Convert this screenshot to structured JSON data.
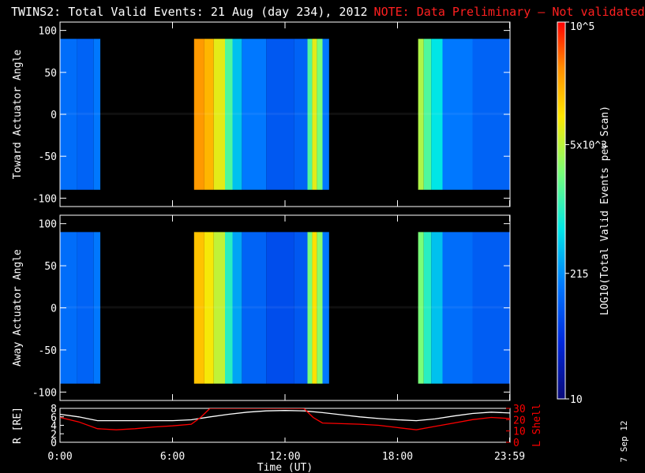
{
  "header": {
    "title": "TWINS2: Total Valid Events: 21 Aug (day 234), 2012",
    "note": "NOTE: Data Preliminary — Not validated"
  },
  "side_stamp": "7 Sep 12",
  "colors": {
    "background": "#000000",
    "frame": "#ffffff",
    "note": "#ff2020",
    "r_line": "#ffffff",
    "lshell_line": "#ff0000"
  },
  "colorbar": {
    "label": "LOG10(Total Valid Events per Scan)",
    "scale": "log",
    "range": [
      10,
      100000
    ],
    "tick_labels": [
      "10",
      "215",
      "5x10^3",
      "10^5"
    ],
    "tick_values": [
      10,
      215,
      5000,
      100000
    ]
  },
  "chart_data": [
    {
      "type": "heatmap",
      "name": "toward",
      "ylabel": "Toward Actuator Angle",
      "xlabel": "",
      "xlim": [
        0,
        24
      ],
      "ylim": [
        -110,
        110
      ],
      "y_ticks": [
        "100",
        "50",
        "0",
        "-50",
        "-100"
      ],
      "y_tick_values": [
        100,
        50,
        0,
        -50,
        -100
      ],
      "angle_range": [
        -90,
        90
      ],
      "columns": [
        {
          "start": 0.0,
          "end": 0.9,
          "level": 0.28
        },
        {
          "start": 0.9,
          "end": 1.8,
          "level": 0.26
        },
        {
          "start": 1.8,
          "end": 2.15,
          "level": 0.3
        },
        {
          "start": 7.15,
          "end": 7.7,
          "level": 0.86
        },
        {
          "start": 7.7,
          "end": 8.2,
          "level": 0.82
        },
        {
          "start": 8.2,
          "end": 8.8,
          "level": 0.72
        },
        {
          "start": 8.8,
          "end": 9.2,
          "level": 0.55
        },
        {
          "start": 9.2,
          "end": 9.7,
          "level": 0.4
        },
        {
          "start": 9.7,
          "end": 11.0,
          "level": 0.3
        },
        {
          "start": 11.0,
          "end": 12.5,
          "level": 0.24
        },
        {
          "start": 12.5,
          "end": 13.2,
          "level": 0.26
        },
        {
          "start": 13.2,
          "end": 13.45,
          "level": 0.55
        },
        {
          "start": 13.45,
          "end": 13.7,
          "level": 0.72
        },
        {
          "start": 13.7,
          "end": 14.0,
          "level": 0.6
        },
        {
          "start": 14.0,
          "end": 14.35,
          "level": 0.3
        },
        {
          "start": 19.1,
          "end": 19.4,
          "level": 0.66
        },
        {
          "start": 19.4,
          "end": 19.8,
          "level": 0.55
        },
        {
          "start": 19.8,
          "end": 20.4,
          "level": 0.45
        },
        {
          "start": 20.4,
          "end": 22.0,
          "level": 0.3
        },
        {
          "start": 22.0,
          "end": 24.0,
          "level": 0.26
        }
      ]
    },
    {
      "type": "heatmap",
      "name": "away",
      "ylabel": "Away Actuator Angle",
      "xlabel": "",
      "xlim": [
        0,
        24
      ],
      "ylim": [
        -110,
        110
      ],
      "y_ticks": [
        "100",
        "50",
        "0",
        "-50",
        "-100"
      ],
      "y_tick_values": [
        100,
        50,
        0,
        -50,
        -100
      ],
      "angle_range": [
        -90,
        90
      ],
      "columns": [
        {
          "start": 0.0,
          "end": 0.9,
          "level": 0.28
        },
        {
          "start": 0.9,
          "end": 1.8,
          "level": 0.26
        },
        {
          "start": 1.8,
          "end": 2.15,
          "level": 0.3
        },
        {
          "start": 7.15,
          "end": 7.7,
          "level": 0.8
        },
        {
          "start": 7.7,
          "end": 8.2,
          "level": 0.74
        },
        {
          "start": 8.2,
          "end": 8.8,
          "level": 0.68
        },
        {
          "start": 8.8,
          "end": 9.2,
          "level": 0.5
        },
        {
          "start": 9.2,
          "end": 9.7,
          "level": 0.36
        },
        {
          "start": 9.7,
          "end": 11.0,
          "level": 0.26
        },
        {
          "start": 11.0,
          "end": 12.5,
          "level": 0.22
        },
        {
          "start": 12.5,
          "end": 13.2,
          "level": 0.24
        },
        {
          "start": 13.2,
          "end": 13.45,
          "level": 0.6
        },
        {
          "start": 13.45,
          "end": 13.7,
          "level": 0.76
        },
        {
          "start": 13.7,
          "end": 14.0,
          "level": 0.62
        },
        {
          "start": 14.0,
          "end": 14.35,
          "level": 0.3
        },
        {
          "start": 19.1,
          "end": 19.4,
          "level": 0.6
        },
        {
          "start": 19.4,
          "end": 19.8,
          "level": 0.5
        },
        {
          "start": 19.8,
          "end": 20.4,
          "level": 0.4
        },
        {
          "start": 20.4,
          "end": 22.0,
          "level": 0.28
        },
        {
          "start": 22.0,
          "end": 24.0,
          "level": 0.25
        }
      ]
    },
    {
      "type": "line",
      "name": "orbit",
      "xlabel": "Time (UT)",
      "xlim": [
        0,
        24
      ],
      "x_ticks": [
        "0:00",
        "6:00",
        "12:00",
        "18:00",
        "23:59"
      ],
      "x_tick_values": [
        0,
        6,
        12,
        18,
        23.98
      ],
      "ylabel_left": "R [RE]",
      "ylim_left": [
        0,
        8
      ],
      "y_ticks_left": [
        "8",
        "6",
        "4",
        "2",
        "0"
      ],
      "ylabel_right": "L Shell",
      "ylim_right": [
        0,
        30
      ],
      "y_ticks_right": [
        "30",
        "20",
        "10",
        "0"
      ],
      "series": [
        {
          "name": "R",
          "axis": "left",
          "x": [
            0,
            1,
            2,
            3,
            4,
            5,
            6,
            7,
            8,
            9,
            10,
            11,
            12,
            13,
            14,
            15,
            16,
            17,
            18,
            19,
            20,
            21,
            22,
            23,
            24
          ],
          "y": [
            6.6,
            6.0,
            5.1,
            5.1,
            5.1,
            5.1,
            5.1,
            5.3,
            6.0,
            6.6,
            7.1,
            7.4,
            7.5,
            7.4,
            7.0,
            6.5,
            6.0,
            5.6,
            5.3,
            5.1,
            5.5,
            6.2,
            6.8,
            7.1,
            6.9
          ]
        },
        {
          "name": "L Shell",
          "axis": "right",
          "x": [
            0,
            1,
            2,
            3,
            4,
            5,
            6,
            7,
            7.5,
            8,
            13,
            13.5,
            14,
            15,
            16,
            17,
            18,
            19,
            20,
            21,
            22,
            23,
            24
          ],
          "y": [
            22,
            18,
            12,
            11,
            12,
            13.5,
            14.5,
            16,
            22,
            30,
            30,
            22,
            17,
            16.5,
            16,
            15,
            13,
            11,
            14,
            17,
            20,
            22,
            21
          ]
        }
      ]
    }
  ]
}
